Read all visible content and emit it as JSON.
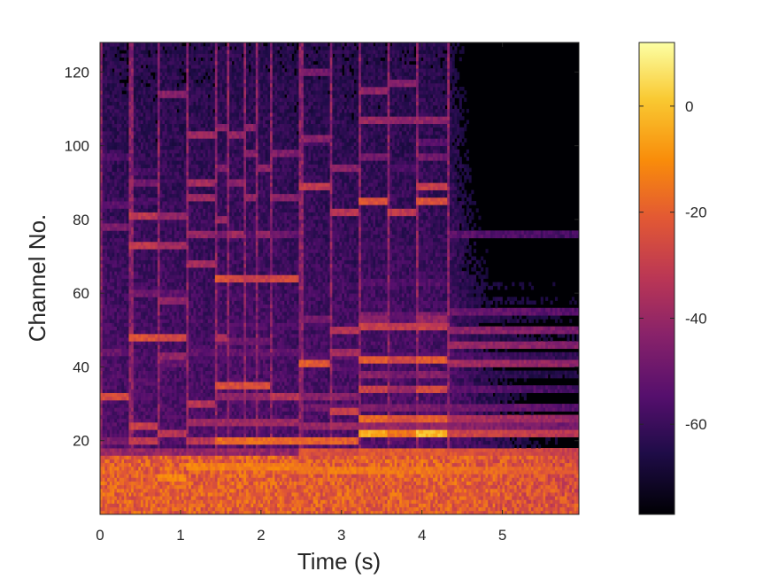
{
  "chart_data": {
    "type": "heatmap",
    "title": "",
    "xlabel": "Time (s)",
    "ylabel": "Channel No.",
    "xlim": [
      0,
      5.95
    ],
    "ylim": [
      0,
      128
    ],
    "xticks": [
      "0",
      "1",
      "2",
      "3",
      "4",
      "5"
    ],
    "xtick_values": [
      0,
      1,
      2,
      3,
      4,
      5
    ],
    "yticks": [
      "20",
      "40",
      "60",
      "80",
      "100",
      "120"
    ],
    "ytick_values": [
      20,
      40,
      60,
      80,
      100,
      120
    ],
    "colormap": "inferno",
    "colorbar": {
      "range": [
        -77,
        12
      ],
      "ticks": [
        "0",
        "-20",
        "-40",
        "-60"
      ],
      "tick_values": [
        0,
        -20,
        -40,
        -60
      ]
    },
    "onsets_s": [
      0,
      0.37,
      0.72,
      1.06,
      1.42,
      1.58,
      1.78,
      1.92,
      2.1,
      2.48,
      2.85,
      3.2,
      3.57,
      3.93,
      4.3
    ],
    "notes": [
      {
        "t0": 0.0,
        "t1": 0.37,
        "channels": [
          8,
          17,
          20,
          32,
          78,
          84,
          97
        ],
        "level": [
          -28,
          -40,
          -42,
          -22,
          -42,
          -50,
          -52
        ]
      },
      {
        "t0": 0.37,
        "t1": 0.72,
        "channels": [
          8,
          20,
          24,
          48,
          73,
          81,
          90
        ],
        "level": [
          -18,
          -28,
          -26,
          -20,
          -28,
          -28,
          -45
        ]
      },
      {
        "t0": 0.72,
        "t1": 1.06,
        "channels": [
          10,
          22,
          43,
          48,
          58,
          73,
          81,
          114
        ],
        "level": [
          -8,
          -30,
          -38,
          -24,
          -38,
          -34,
          -38,
          -40
        ]
      },
      {
        "t0": 1.06,
        "t1": 1.42,
        "channels": [
          13,
          20,
          30,
          68,
          76,
          86,
          90,
          103
        ],
        "level": [
          -10,
          -30,
          -30,
          -34,
          -38,
          -36,
          -34,
          -36
        ]
      },
      {
        "t0": 1.42,
        "t1": 1.58,
        "channels": [
          13,
          20,
          35,
          48,
          64,
          80,
          94,
          105
        ],
        "level": [
          -10,
          -14,
          -20,
          -32,
          -20,
          -36,
          -42,
          -40
        ]
      },
      {
        "t0": 1.58,
        "t1": 1.78,
        "channels": [
          13,
          20,
          35,
          64,
          76,
          90,
          103
        ],
        "level": [
          -10,
          -14,
          -22,
          -24,
          -36,
          -40,
          -38
        ]
      },
      {
        "t0": 1.78,
        "t1": 1.92,
        "channels": [
          13,
          20,
          35,
          64,
          86,
          98,
          105
        ],
        "level": [
          -10,
          -14,
          -20,
          -26,
          -38,
          -40,
          -40
        ]
      },
      {
        "t0": 1.92,
        "t1": 2.1,
        "channels": [
          13,
          20,
          35,
          64,
          76,
          94
        ],
        "level": [
          -10,
          -14,
          -22,
          -26,
          -38,
          -40
        ]
      },
      {
        "t0": 2.1,
        "t1": 2.48,
        "channels": [
          13,
          20,
          32,
          64,
          86,
          98
        ],
        "level": [
          -10,
          -14,
          -30,
          -22,
          -40,
          -42
        ]
      },
      {
        "t0": 2.48,
        "t1": 2.85,
        "channels": [
          12,
          17,
          20,
          41,
          89,
          102,
          120
        ],
        "level": [
          -12,
          -20,
          -16,
          -18,
          -28,
          -40,
          -44
        ]
      },
      {
        "t0": 2.85,
        "t1": 3.2,
        "channels": [
          12,
          17,
          20,
          28,
          44,
          50,
          82,
          94
        ],
        "level": [
          -10,
          -22,
          -16,
          -26,
          -34,
          -30,
          -30,
          -40
        ]
      },
      {
        "t0": 3.2,
        "t1": 3.57,
        "channels": [
          12,
          17,
          22,
          26,
          42,
          51,
          85,
          107,
          115
        ],
        "level": [
          -12,
          -18,
          0,
          -14,
          -18,
          -26,
          -20,
          -36,
          -38
        ]
      },
      {
        "t0": 3.57,
        "t1": 3.93,
        "channels": [
          12,
          17,
          22,
          26,
          42,
          51,
          82,
          107,
          117
        ],
        "level": [
          -12,
          -18,
          -12,
          -20,
          -24,
          -28,
          -28,
          -38,
          -40
        ]
      },
      {
        "t0": 3.93,
        "t1": 4.3,
        "channels": [
          12,
          17,
          22,
          26,
          42,
          51,
          85,
          89,
          107
        ],
        "level": [
          -12,
          -18,
          2,
          -16,
          -18,
          -26,
          -20,
          -26,
          -38
        ]
      },
      {
        "t0": 4.3,
        "t1": 5.95,
        "channels": [
          12,
          17,
          22,
          26,
          41,
          46,
          50,
          55,
          76
        ],
        "level": [
          -14,
          -20,
          -24,
          -32,
          -34,
          -36,
          -38,
          -46,
          -50
        ]
      }
    ]
  }
}
